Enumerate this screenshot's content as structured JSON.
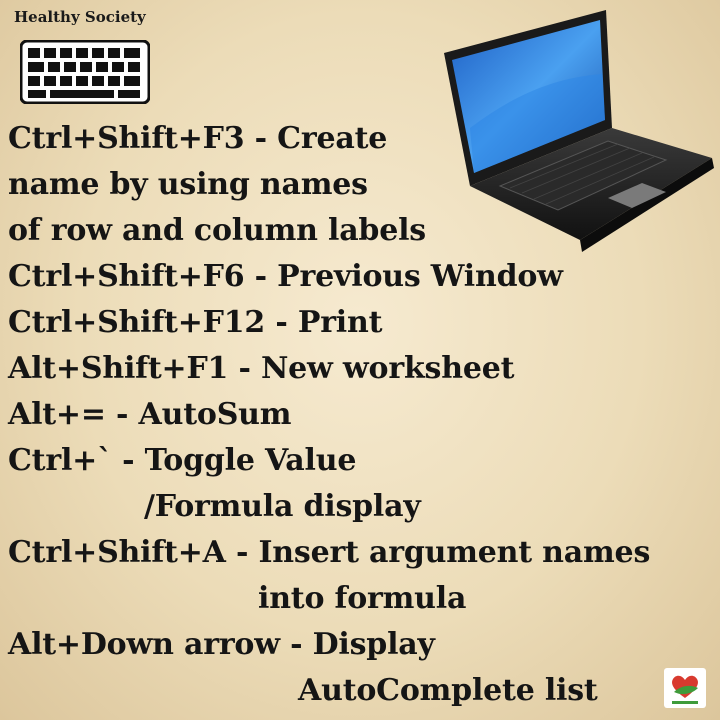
{
  "brand": "Healthy Society",
  "icons": {
    "keyboard": "keyboard-icon",
    "laptop": "laptop-icon",
    "badge": "healthy-society-badge-icon"
  },
  "colors": {
    "background": "#ecdcb8",
    "text": "#151515",
    "screen": "#2f7fd9"
  },
  "shortcut_lines": [
    "Ctrl+Shift+F3 - Create",
    "name by using names",
    "of row and column labels",
    "Ctrl+Shift+F6 - Previous Window",
    "Ctrl+Shift+F12 - Print",
    "Alt+Shift+F1 - New worksheet",
    "Alt+= - AutoSum",
    "Ctrl+` - Toggle Value",
    "/Formula display",
    "Ctrl+Shift+A - Insert argument names",
    "into formula",
    "Alt+Down arrow - Display",
    "AutoComplete list"
  ]
}
